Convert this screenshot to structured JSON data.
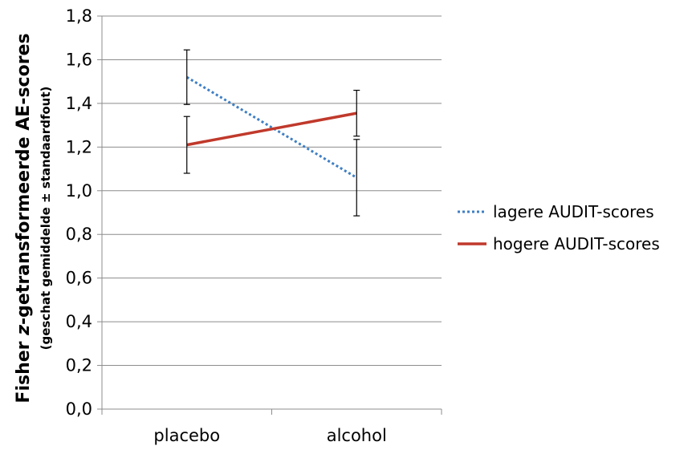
{
  "chart_data": {
    "type": "line",
    "categories": [
      "placebo",
      "alcohol"
    ],
    "ylabel": {
      "part1": "Fisher ",
      "part2": "z",
      "part3": "-getransformeerde AE-scores",
      "sub": "(geschat gemiddelde ± standaardfout)"
    },
    "ylim": [
      0,
      1.8
    ],
    "yticks": [
      "0,0",
      "0,2",
      "0,4",
      "0,6",
      "0,8",
      "1,0",
      "1,2",
      "1,4",
      "1,6",
      "1,8"
    ],
    "grid": true,
    "legend_position": "right",
    "series": [
      {
        "name": "lagere AUDIT-scores",
        "values": [
          1.52,
          1.06
        ],
        "errors": [
          0.125,
          0.175
        ],
        "color": "#3f7fc4",
        "style": "dotted"
      },
      {
        "name": "hogere AUDIT-scores",
        "values": [
          1.21,
          1.355
        ],
        "errors": [
          0.13,
          0.105
        ],
        "color": "#c0392b",
        "style": "solid"
      }
    ]
  }
}
